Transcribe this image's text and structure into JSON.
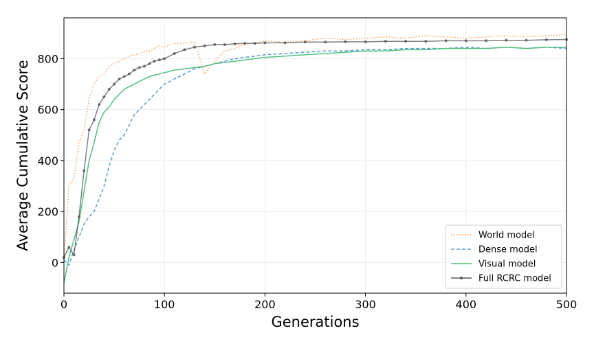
{
  "chart_data": {
    "type": "line",
    "title": "",
    "xlabel": "Generations",
    "ylabel": "Average Cumulative Score",
    "xlim": [
      0,
      500
    ],
    "ylim": [
      -120,
      960
    ],
    "xticks": [
      0,
      100,
      200,
      300,
      400,
      500
    ],
    "yticks": [
      0,
      200,
      400,
      600,
      800
    ],
    "grid": true,
    "legend_position": "bottom-right",
    "series": [
      {
        "name": "World model",
        "color": "#f0a060",
        "style": "dotted",
        "x": [
          0,
          5,
          10,
          15,
          20,
          25,
          30,
          35,
          40,
          45,
          50,
          55,
          60,
          65,
          70,
          75,
          80,
          85,
          90,
          95,
          100,
          110,
          120,
          130,
          140,
          150,
          160,
          170,
          180,
          190,
          200,
          220,
          240,
          260,
          280,
          300,
          320,
          340,
          360,
          380,
          400,
          420,
          440,
          460,
          480,
          500
        ],
        "values": [
          10,
          300,
          330,
          470,
          520,
          640,
          700,
          730,
          740,
          770,
          780,
          790,
          800,
          810,
          815,
          820,
          830,
          830,
          840,
          850,
          845,
          860,
          860,
          865,
          740,
          790,
          830,
          840,
          855,
          860,
          870,
          865,
          870,
          880,
          875,
          880,
          885,
          880,
          890,
          885,
          880,
          885,
          890,
          885,
          890,
          895
        ]
      },
      {
        "name": "Dense model",
        "color": "#5a9bc8",
        "style": "dashed",
        "x": [
          0,
          5,
          10,
          15,
          20,
          25,
          30,
          35,
          40,
          45,
          50,
          55,
          60,
          65,
          70,
          75,
          80,
          85,
          90,
          95,
          100,
          110,
          120,
          130,
          140,
          150,
          160,
          170,
          180,
          190,
          200,
          220,
          240,
          260,
          280,
          300,
          320,
          340,
          360,
          380,
          400,
          420,
          440,
          460,
          480,
          500
        ],
        "values": [
          10,
          -10,
          50,
          100,
          150,
          180,
          200,
          250,
          300,
          380,
          440,
          480,
          500,
          540,
          580,
          600,
          620,
          640,
          660,
          680,
          700,
          720,
          740,
          760,
          770,
          780,
          790,
          800,
          805,
          810,
          815,
          820,
          825,
          830,
          830,
          835,
          835,
          840,
          840,
          840,
          845,
          840,
          845,
          840,
          845,
          840
        ]
      },
      {
        "name": "Visual model",
        "color": "#4fc080",
        "style": "solid",
        "x": [
          0,
          5,
          10,
          15,
          20,
          25,
          30,
          35,
          40,
          45,
          50,
          55,
          60,
          65,
          70,
          75,
          80,
          85,
          90,
          95,
          100,
          110,
          120,
          130,
          140,
          150,
          160,
          170,
          180,
          190,
          200,
          220,
          240,
          260,
          280,
          300,
          320,
          340,
          360,
          380,
          400,
          420,
          440,
          460,
          480,
          500
        ],
        "values": [
          -80,
          20,
          90,
          160,
          280,
          400,
          470,
          550,
          590,
          610,
          640,
          660,
          680,
          690,
          700,
          710,
          720,
          730,
          735,
          740,
          745,
          755,
          760,
          765,
          770,
          780,
          785,
          790,
          795,
          800,
          805,
          810,
          815,
          820,
          825,
          830,
          830,
          835,
          835,
          840,
          840,
          840,
          845,
          840,
          845,
          845
        ]
      },
      {
        "name": "Full RCRC model",
        "color": "#555555",
        "style": "solid-marker",
        "x": [
          0,
          5,
          10,
          15,
          20,
          25,
          30,
          35,
          40,
          45,
          50,
          55,
          60,
          65,
          70,
          75,
          80,
          85,
          90,
          95,
          100,
          110,
          120,
          130,
          140,
          150,
          160,
          170,
          180,
          190,
          200,
          220,
          240,
          260,
          280,
          300,
          320,
          340,
          360,
          380,
          400,
          420,
          440,
          460,
          480,
          500
        ],
        "values": [
          20,
          60,
          30,
          180,
          360,
          520,
          560,
          620,
          650,
          680,
          700,
          720,
          730,
          740,
          755,
          765,
          770,
          780,
          790,
          795,
          800,
          820,
          835,
          845,
          850,
          855,
          855,
          858,
          860,
          860,
          862,
          862,
          865,
          865,
          866,
          866,
          868,
          868,
          868,
          870,
          870,
          870,
          872,
          872,
          874,
          875
        ]
      }
    ]
  }
}
